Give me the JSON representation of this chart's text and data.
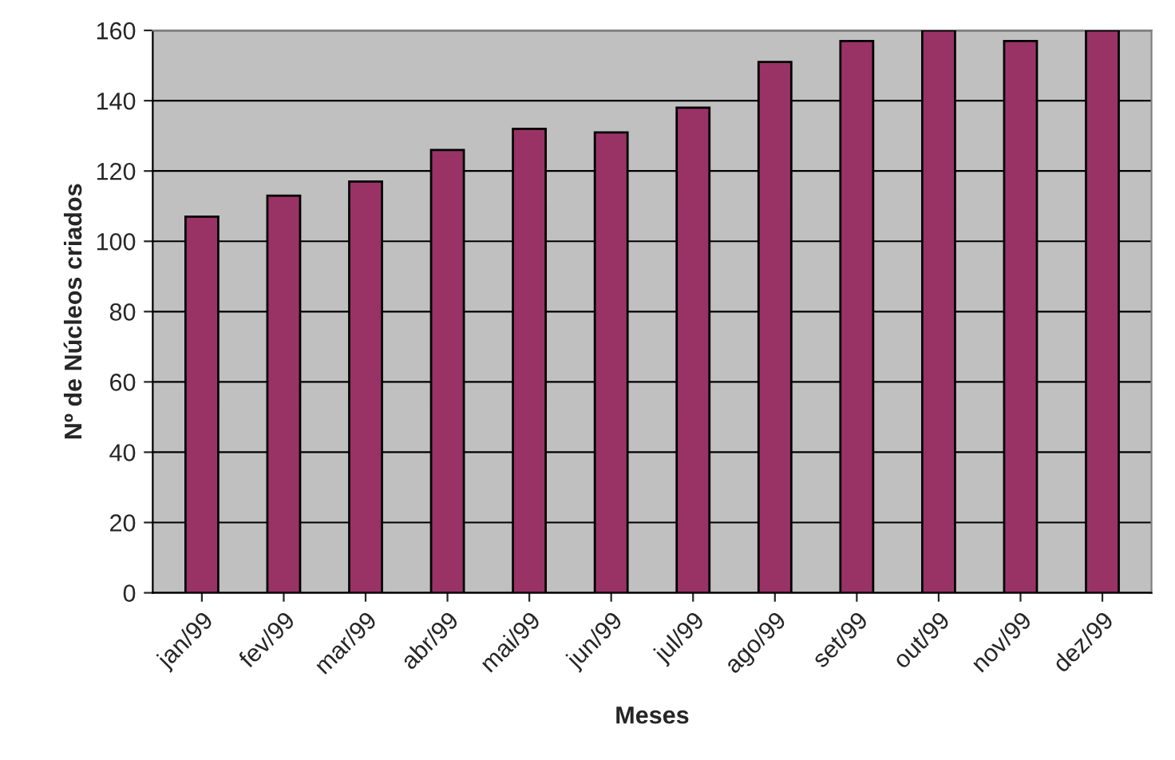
{
  "chart_data": {
    "type": "bar",
    "xlabel": "Meses",
    "ylabel": "Nº de Núcleos criados",
    "categories": [
      "jan/99",
      "fev/99",
      "mar/99",
      "abr/99",
      "mai/99",
      "jun/99",
      "jul/99",
      "ago/99",
      "set/99",
      "out/99",
      "nov/99",
      "dez/99"
    ],
    "values": [
      107,
      113,
      117,
      126,
      132,
      131,
      138,
      151,
      157,
      160,
      157,
      160
    ],
    "color": "#993366",
    "ylim": [
      0,
      160
    ],
    "yticks": [
      0,
      20,
      40,
      60,
      80,
      100,
      120,
      140,
      160
    ],
    "grid": "y",
    "legend": false
  }
}
